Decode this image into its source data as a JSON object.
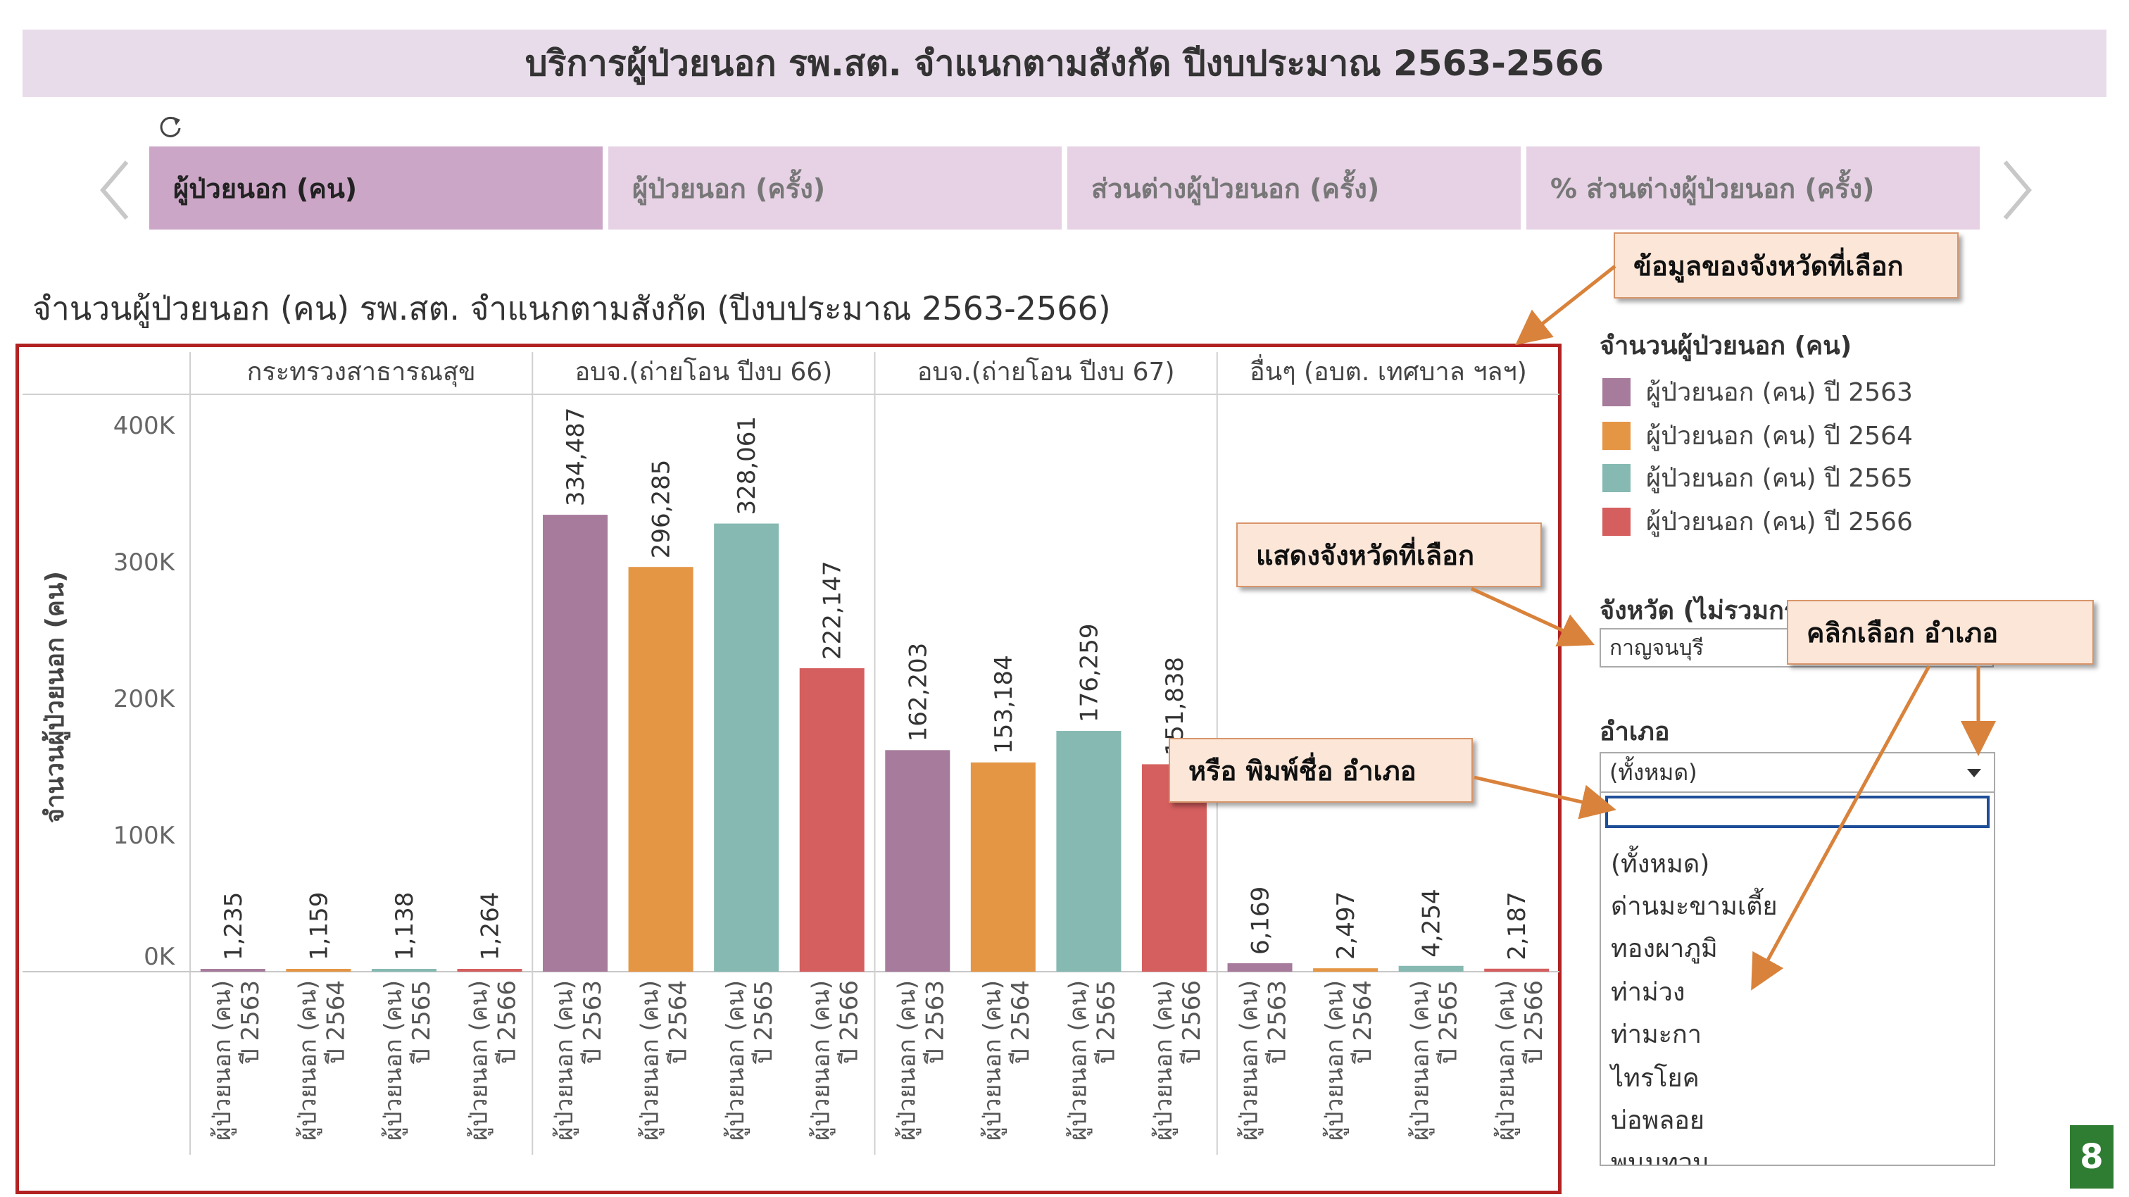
{
  "header": {
    "title": "บริการผู้ป่วยนอก รพ.สต. จำแนกตามสังกัด ปีงบประมาณ 2563-2566"
  },
  "tabs": [
    {
      "label": "ผู้ป่วยนอก (คน)",
      "active": true
    },
    {
      "label": "ผู้ป่วยนอก (ครั้ง)",
      "active": false
    },
    {
      "label": "ส่วนต่างผู้ป่วยนอก (ครั้ง)",
      "active": false
    },
    {
      "label": "% ส่วนต่างผู้ป่วยนอก (ครั้ง)",
      "active": false
    }
  ],
  "chart_title": "จำนวนผู้ป่วยนอก (คน) รพ.สต. จำแนกตามสังกัด (ปีงบประมาณ 2563-2566)",
  "chart_data": {
    "type": "bar",
    "title": "จำนวนผู้ป่วยนอก (คน) รพ.สต. จำแนกตามสังกัด (ปีงบประมาณ 2563-2566)",
    "ylabel": "จำนวนผู้ป่วยนอก (คน)",
    "ylim": [
      0,
      420000
    ],
    "yticks": [
      {
        "value": 0,
        "label": "0K"
      },
      {
        "value": 100000,
        "label": "100K"
      },
      {
        "value": 200000,
        "label": "200K"
      },
      {
        "value": 300000,
        "label": "300K"
      },
      {
        "value": 400000,
        "label": "400K"
      }
    ],
    "panels": [
      "กระทรวงสาธารณสุข",
      "อบจ.(ถ่ายโอน ปีงบ 66)",
      "อบจ.(ถ่ายโอน ปีงบ 67)",
      "อื่นๆ (อบต. เทศบาล ฯลฯ)"
    ],
    "categories": [
      "ผู้ป่วยนอก (คน) ปี 2563",
      "ผู้ป่วยนอก (คน) ปี 2564",
      "ผู้ป่วยนอก (คน) ปี 2565",
      "ผู้ป่วยนอก (คน) ปี 2566"
    ],
    "category_lines": [
      [
        "ผู้ป่วยนอก (คน)",
        "ปี 2563"
      ],
      [
        "ผู้ป่วยนอก (คน)",
        "ปี 2564"
      ],
      [
        "ผู้ป่วยนอก (คน)",
        "ปี 2565"
      ],
      [
        "ผู้ป่วยนอก (คน)",
        "ปี 2566"
      ]
    ],
    "series_colors": [
      "#a67b9b",
      "#e59645",
      "#86b9b2",
      "#d55e5e"
    ],
    "values": [
      [
        1235,
        1159,
        1138,
        1264
      ],
      [
        334487,
        296285,
        328061,
        222147
      ],
      [
        162203,
        153184,
        176259,
        151838
      ],
      [
        6169,
        2497,
        4254,
        2187
      ]
    ],
    "grid": false,
    "legend_placement": "right"
  },
  "legend": {
    "title": "จำนวนผู้ป่วยนอก (คน)",
    "items": [
      {
        "label": "ผู้ป่วยนอก (คน) ปี 2563",
        "color": "#a67b9b"
      },
      {
        "label": "ผู้ป่วยนอก (คน) ปี 2564",
        "color": "#e59645"
      },
      {
        "label": "ผู้ป่วยนอก (คน) ปี 2565",
        "color": "#86b9b2"
      },
      {
        "label": "ผู้ป่วยนอก (คน) ปี 2566",
        "color": "#d55e5e"
      }
    ]
  },
  "filters": {
    "province_label": "จังหวัด (ไม่รวมกรุงเทพฯ)",
    "province_value": "กาญจนบุรี",
    "district_label": "อำเภอ",
    "district_value": "(ทั้งหมด)",
    "district_options": [
      "(ทั้งหมด)",
      "ด่านมะขามเตี้ย",
      "ทองผาภูมิ",
      "ท่าม่วง",
      "ท่ามะกา",
      "ไทรโยค",
      "บ่อพลอย",
      "พนมทวน"
    ]
  },
  "callouts": {
    "selected_province_data": "ข้อมูลของจังหวัดที่เลือก",
    "show_selected_province": "แสดงจังหวัดที่เลือก",
    "click_select_district": "คลิกเลือก อำเภอ",
    "or_type_district": "หรือ พิมพ์ชื่อ อำเภอ"
  },
  "page_number": "8",
  "colors": {
    "title_bg": "#e9dcea",
    "tab_active": "#cca6c7",
    "tab_inactive": "#e6d2e4",
    "frame": "#b22222",
    "callout_bg": "#fbe6d8",
    "arrow": "#d9823b",
    "badge": "#2e7d32"
  }
}
